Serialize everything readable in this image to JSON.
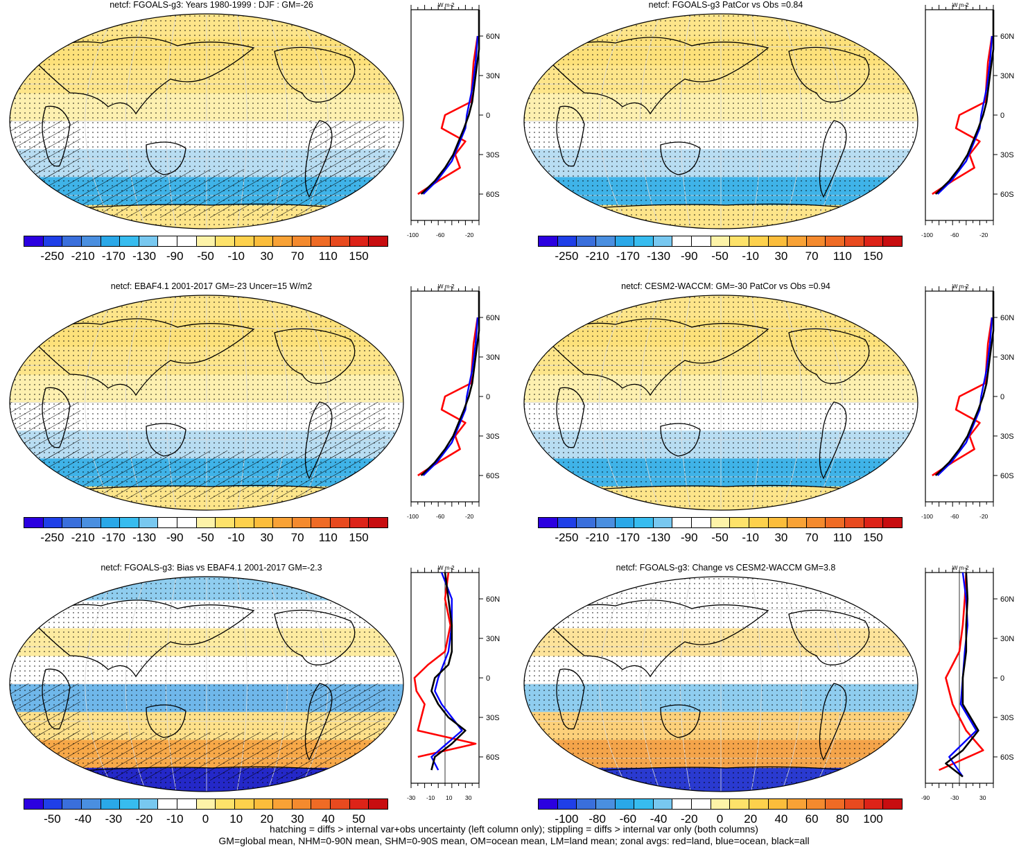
{
  "panels": [
    {
      "title": "netcf: FGOALS-g3: Years 1980-1999 : DJF : GM=-26",
      "colorbar": [
        "-250",
        "-210",
        "-170",
        "-130",
        "-90",
        "-50",
        "-10",
        "30",
        "70",
        "110",
        "150"
      ],
      "zonal_x_ticks": [
        "-100",
        "-60",
        "-20"
      ],
      "scheme": "abs",
      "hatch": true
    },
    {
      "title": "netcf: FGOALS-g3 PatCor vs Obs =0.84",
      "colorbar": [
        "-250",
        "-210",
        "-170",
        "-130",
        "-90",
        "-50",
        "-10",
        "30",
        "70",
        "110",
        "150"
      ],
      "zonal_x_ticks": [
        "-100",
        "-60",
        "-20"
      ],
      "scheme": "abs",
      "hatch": false
    },
    {
      "title": "netcf: EBAF4.1 2001-2017 GM=-23 Uncer=15 W/m2",
      "colorbar": [
        "-250",
        "-210",
        "-170",
        "-130",
        "-90",
        "-50",
        "-10",
        "30",
        "70",
        "110",
        "150"
      ],
      "zonal_x_ticks": [
        "-100",
        "-60",
        "-20"
      ],
      "scheme": "abs",
      "hatch": true
    },
    {
      "title": "netcf: CESM2-WACCM: GM=-30 PatCor vs Obs =0.94",
      "colorbar": [
        "-250",
        "-210",
        "-170",
        "-130",
        "-90",
        "-50",
        "-10",
        "30",
        "70",
        "110",
        "150"
      ],
      "zonal_x_ticks": [
        "-100",
        "-60",
        "-20"
      ],
      "scheme": "abs",
      "hatch": false
    },
    {
      "title": "netcf: FGOALS-g3: Bias vs EBAF4.1 2001-2017 GM=-2.3",
      "colorbar": [
        "-50",
        "-40",
        "-30",
        "-20",
        "-10",
        "0",
        "10",
        "20",
        "30",
        "40",
        "50"
      ],
      "zonal_x_ticks": [
        "-30",
        "-10",
        "10",
        "30"
      ],
      "scheme": "bias",
      "hatch": true
    },
    {
      "title": "netcf: FGOALS-g3: Change vs CESM2-WACCM GM=3.8",
      "colorbar": [
        "-100",
        "-80",
        "-60",
        "-40",
        "-20",
        "0",
        "20",
        "40",
        "60",
        "80",
        "100"
      ],
      "zonal_x_ticks": [
        "-90",
        "-30",
        "30"
      ],
      "scheme": "change",
      "hatch": false
    }
  ],
  "zonal_y_ticks": [
    "60N",
    "30N",
    "0",
    "30S",
    "60S"
  ],
  "zonal_unit": "W m-2",
  "footer": {
    "line1": "hatching = diffs > internal var+obs uncertainty (left column only); stippling = diffs > internal var only (both columns)",
    "line2": "GM=global mean, NHM=0-90N mean, SHM=0-90S mean, OM=ocean mean, LM=land mean; zonal avgs: red=land, blue=ocean, black=all"
  },
  "colors": {
    "colorbar_swatches": [
      "#2b00e0",
      "#1f3fe8",
      "#3a6fdc",
      "#4a8fe0",
      "#2aa8e8",
      "#37bcef",
      "#78c8f0",
      "#ffffff",
      "#ffffff",
      "#fdf3a8",
      "#fde26a",
      "#fdd14c",
      "#fbbd3b",
      "#f8a236",
      "#f48a2e",
      "#ef6b25",
      "#e84a1f",
      "#dd2318",
      "#c80d10"
    ],
    "land_line": "#000000",
    "zonal_land": "#ff0000",
    "zonal_ocean": "#0000ff",
    "zonal_all": "#000000"
  }
}
